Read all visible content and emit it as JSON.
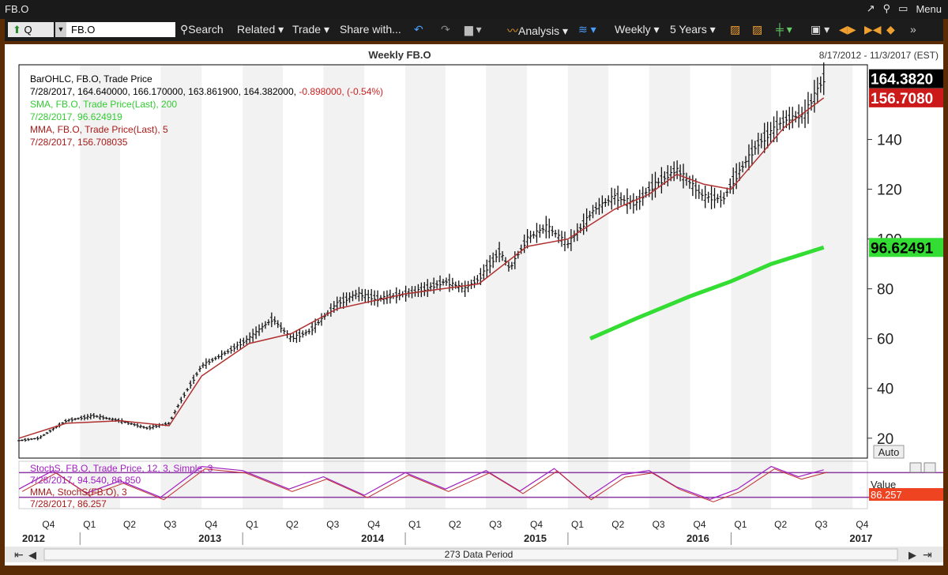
{
  "window": {
    "title": "FB.O",
    "menu_label": "Menu"
  },
  "toolbar": {
    "period": "Q",
    "symbol": "FB.O",
    "search": "Search",
    "related": "Related",
    "trade": "Trade",
    "share": "Share with...",
    "analysis": "Analysis",
    "interval": "Weekly",
    "range": "5 Years"
  },
  "chart_header": {
    "title": "Weekly FB.O",
    "date_range": "8/17/2012 - 11/3/2017 (EST)"
  },
  "legend": [
    {
      "text": "BarOHLC, FB.O, Trade Price",
      "color": "#000000"
    },
    {
      "text": "7/28/2017, 164.640000, 166.170000, 163.861900, 164.382000, ",
      "color": "#000000",
      "extra": "-0.898000, (-0.54%)",
      "extra_color": "#cc2222"
    },
    {
      "text": "SMA, FB.O, Trade Price(Last), 200",
      "color": "#33cc33"
    },
    {
      "text": "7/28/2017, 96.624919",
      "color": "#33cc33"
    },
    {
      "text": "MMA, FB.O, Trade Price(Last), 5",
      "color": "#aa1a1a"
    },
    {
      "text": "7/28/2017, 156.708035",
      "color": "#aa1a1a"
    }
  ],
  "price_tags": {
    "last": "164.3820",
    "mma": "156.7080",
    "sma": "96.62491"
  },
  "auto_label": "Auto",
  "stoch_legend": [
    {
      "text": "StochS, FB.O, Trade Price, 12, 3, Simple, 3",
      "color": "#a020c0"
    },
    {
      "text": "7/28/2017, 94.540, 86.850",
      "color": "#a020c0"
    },
    {
      "text": "MMA, StochS(FB.O), 3",
      "color": "#aa1a1a"
    },
    {
      "text": "7/28/2017, 86.257",
      "color": "#aa1a1a"
    }
  ],
  "stoch_value_label": "Value",
  "stoch_tag": "86.257",
  "quarters": [
    "Q4",
    "Q1",
    "Q2",
    "Q3",
    "Q4",
    "Q1",
    "Q2",
    "Q3",
    "Q4",
    "Q1",
    "Q2",
    "Q3",
    "Q4",
    "Q1",
    "Q2",
    "Q3",
    "Q4",
    "Q1",
    "Q2",
    "Q3",
    "Q4"
  ],
  "years": [
    "2012",
    "2013",
    "2014",
    "2015",
    "2016",
    "2017"
  ],
  "data_period": "273 Data Period",
  "chart_data": {
    "type": "line",
    "title": "Weekly FB.O",
    "ylim": [
      12,
      170
    ],
    "yticks": [
      20,
      40,
      60,
      80,
      100,
      120,
      140
    ],
    "grid": true,
    "series": [
      {
        "name": "BarOHLC, FB.O, Trade Price",
        "color": "#000000",
        "x": [
          "2012-08-17",
          "2012-10-01",
          "2012-12-01",
          "2013-02-01",
          "2013-04-01",
          "2013-06-01",
          "2013-07-20",
          "2013-08-15",
          "2013-10-01",
          "2013-12-01",
          "2014-01-15",
          "2014-03-10",
          "2014-04-20",
          "2014-06-01",
          "2014-08-01",
          "2014-09-15",
          "2014-11-01",
          "2015-01-01",
          "2015-02-15",
          "2015-04-01",
          "2015-05-15",
          "2015-06-15",
          "2015-08-01",
          "2015-08-24",
          "2015-10-01",
          "2015-11-15",
          "2016-01-01",
          "2016-02-01",
          "2016-03-01",
          "2016-04-15",
          "2016-06-01",
          "2016-07-01",
          "2016-09-01",
          "2016-11-01",
          "2016-12-15",
          "2017-01-01",
          "2017-03-01",
          "2017-05-01",
          "2017-06-15",
          "2017-07-28"
        ],
        "close": [
          19,
          20,
          27,
          29,
          27,
          24,
          26,
          35,
          49,
          55,
          60,
          68,
          60,
          63,
          74,
          78,
          76,
          78,
          80,
          83,
          80,
          84,
          95,
          88,
          100,
          105,
          98,
          105,
          112,
          117,
          114,
          120,
          128,
          117,
          116,
          122,
          138,
          148,
          150,
          164.38
        ]
      },
      {
        "name": "SMA, FB.O, Trade Price(Last), 200",
        "color": "#33cc33",
        "x": [
          "2016-02-20",
          "2016-06-01",
          "2016-10-01",
          "2017-01-01",
          "2017-04-01",
          "2017-07-28"
        ],
        "values": [
          60,
          68,
          77,
          83,
          90,
          96.62
        ]
      },
      {
        "name": "MMA, FB.O, Trade Price(Last), 5",
        "color": "#aa1a1a",
        "x": [
          "2012-08-17",
          "2012-12-01",
          "2013-04-01",
          "2013-07-20",
          "2013-10-01",
          "2014-01-15",
          "2014-04-20",
          "2014-08-01",
          "2015-01-01",
          "2015-06-15",
          "2015-10-01",
          "2016-01-01",
          "2016-04-15",
          "2016-07-01",
          "2016-09-01",
          "2016-11-01",
          "2017-01-01",
          "2017-05-01",
          "2017-07-28"
        ],
        "values": [
          20,
          26,
          27,
          25,
          45,
          58,
          62,
          72,
          78,
          82,
          97,
          100,
          112,
          118,
          126,
          122,
          120,
          145,
          156.71
        ]
      }
    ],
    "stochastic": {
      "ylim": [
        0,
        100
      ],
      "upper": 80,
      "lower": 20,
      "x": [
        "2012-08-17",
        "2012-11-01",
        "2013-01-15",
        "2013-04-01",
        "2013-07-01",
        "2013-10-01",
        "2014-01-01",
        "2014-04-15",
        "2014-07-01",
        "2014-10-01",
        "2015-01-01",
        "2015-04-01",
        "2015-07-01",
        "2015-09-15",
        "2015-12-01",
        "2016-02-15",
        "2016-05-01",
        "2016-07-01",
        "2016-09-01",
        "2016-11-15",
        "2017-01-15",
        "2017-04-01",
        "2017-06-01",
        "2017-07-28"
      ],
      "values": [
        40,
        85,
        30,
        60,
        20,
        95,
        85,
        40,
        70,
        25,
        80,
        40,
        85,
        35,
        90,
        20,
        75,
        85,
        45,
        15,
        40,
        95,
        70,
        86.85
      ]
    }
  }
}
